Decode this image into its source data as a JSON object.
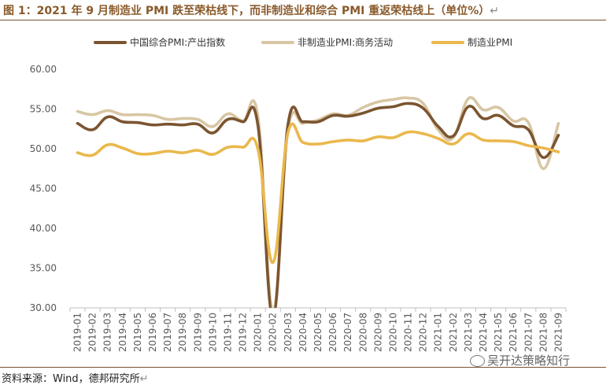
{
  "figure": {
    "title": "图 1：2021 年 9 月制造业 PMI 跌至荣枯线下，而非制造业和综合 PMI 重返荣枯线上（单位%）",
    "source": "资料来源：Wind，德邦研究所",
    "watermark": "吴开达策略知行"
  },
  "colors": {
    "composite": "#7b5530",
    "non_manufacturing": "#d8c6a4",
    "manufacturing": "#eab84c",
    "title": "#8a5a2b",
    "axis": "#bfbfbf"
  },
  "chart_data": {
    "type": "line",
    "ylim": [
      30,
      60
    ],
    "yticks": [
      "30.00",
      "35.00",
      "40.00",
      "45.00",
      "50.00",
      "55.00",
      "60.00"
    ],
    "ytick_values": [
      30,
      35,
      40,
      45,
      50,
      55,
      60
    ],
    "legend_position": "top",
    "grid": false,
    "x": [
      "2019-01",
      "2019-02",
      "2019-03",
      "2019-04",
      "2019-05",
      "2019-06",
      "2019-07",
      "2019-08",
      "2019-09",
      "2019-10",
      "2019-11",
      "2019-12",
      "2020-01",
      "2020-02",
      "2020-03",
      "2020-04",
      "2020-05",
      "2020-06",
      "2020-07",
      "2020-08",
      "2020-09",
      "2020-10",
      "2020-11",
      "2020-12",
      "2021-01",
      "2021-02",
      "2021-03",
      "2021-04",
      "2021-05",
      "2021-06",
      "2021-07",
      "2021-08",
      "2021-09"
    ],
    "series": [
      {
        "name": "中国综合PMI:产出指数",
        "color_key": "composite",
        "values": [
          53.2,
          52.4,
          54.0,
          53.4,
          53.3,
          53.0,
          53.1,
          53.0,
          53.1,
          52.0,
          53.7,
          53.4,
          53.0,
          28.9,
          53.0,
          53.4,
          53.4,
          54.2,
          54.1,
          54.5,
          55.1,
          55.3,
          55.7,
          55.1,
          52.8,
          51.6,
          55.3,
          53.8,
          54.2,
          52.9,
          52.4,
          48.9,
          51.7
        ]
      },
      {
        "name": "非制造业PMI:商务活动",
        "color_key": "non_manufacturing",
        "values": [
          54.7,
          54.3,
          54.8,
          54.3,
          54.3,
          54.2,
          53.7,
          53.8,
          53.7,
          52.8,
          54.4,
          53.5,
          54.1,
          29.6,
          52.3,
          53.2,
          53.6,
          54.4,
          54.2,
          55.2,
          55.9,
          56.2,
          56.4,
          55.7,
          52.4,
          51.4,
          56.3,
          54.9,
          55.2,
          53.5,
          53.3,
          47.5,
          53.2
        ]
      },
      {
        "name": "制造业PMI",
        "color_key": "manufacturing",
        "values": [
          49.5,
          49.2,
          50.5,
          50.1,
          49.4,
          49.4,
          49.7,
          49.5,
          49.8,
          49.3,
          50.2,
          50.2,
          50.0,
          35.7,
          52.0,
          50.8,
          50.6,
          50.9,
          51.1,
          51.0,
          51.5,
          51.4,
          52.1,
          51.9,
          51.3,
          50.6,
          51.9,
          51.1,
          51.0,
          50.9,
          50.4,
          50.1,
          49.6
        ]
      }
    ]
  }
}
